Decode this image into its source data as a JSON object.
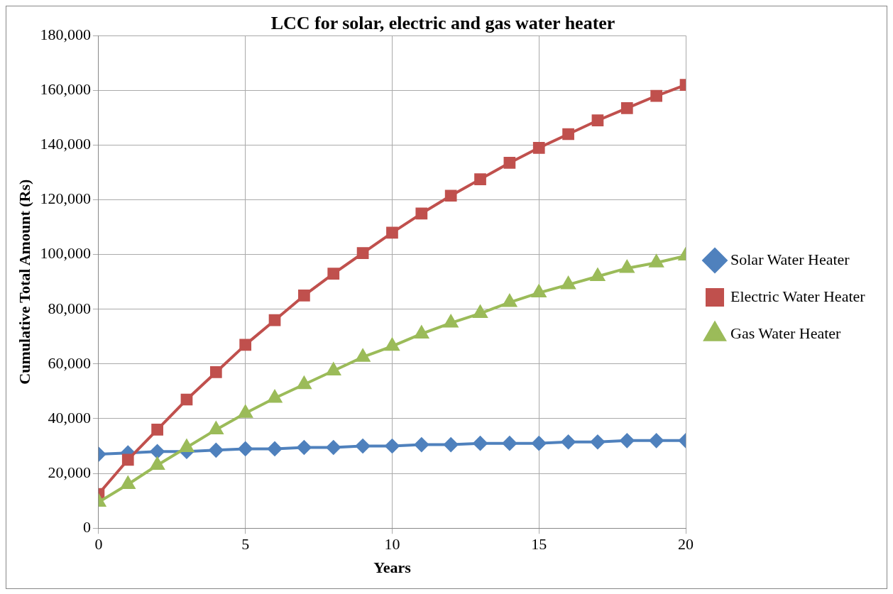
{
  "chart_data": {
    "type": "line",
    "title": "LCC for solar, electric and gas water heater",
    "xlabel": "Years",
    "ylabel": "Cumulative Total Amount (Rs)",
    "x": [
      0,
      1,
      2,
      3,
      4,
      5,
      6,
      7,
      8,
      9,
      10,
      11,
      12,
      13,
      14,
      15,
      16,
      17,
      18,
      19,
      20
    ],
    "series": [
      {
        "name": "Solar Water Heater",
        "color": "#4f81bd",
        "marker": "diamond",
        "values": [
          27000,
          27500,
          28000,
          28000,
          28500,
          29000,
          29000,
          29500,
          29500,
          30000,
          30000,
          30500,
          30500,
          31000,
          31000,
          31000,
          31500,
          31500,
          32000,
          32000,
          32000
        ]
      },
      {
        "name": "Electric Water Heater",
        "color": "#c0504d",
        "marker": "square",
        "values": [
          12500,
          25000,
          36000,
          47000,
          57000,
          67000,
          76000,
          85000,
          93000,
          100500,
          108000,
          115000,
          121500,
          127500,
          133500,
          139000,
          144000,
          149000,
          153500,
          158000,
          162000
        ]
      },
      {
        "name": "Gas Water Heater",
        "color": "#9bbb59",
        "marker": "triangle",
        "values": [
          9500,
          16000,
          23000,
          29500,
          36000,
          42000,
          47500,
          52500,
          57500,
          62500,
          66500,
          71000,
          75000,
          78500,
          82500,
          86000,
          89000,
          92000,
          95000,
          97000,
          99500
        ]
      }
    ],
    "xlim": [
      0,
      20
    ],
    "xticks": [
      0,
      5,
      10,
      15,
      20
    ],
    "ylim": [
      0,
      180000
    ],
    "yticks": [
      0,
      {
        "value": 20000,
        "label": "20,000"
      },
      {
        "value": 40000,
        "label": "40,000"
      },
      {
        "value": 60000,
        "label": "60,000"
      },
      {
        "value": 80000,
        "label": "80,000"
      },
      {
        "value": 100000,
        "label": "100,000"
      },
      {
        "value": 120000,
        "label": "120,000"
      },
      {
        "value": 140000,
        "label": "140,000"
      },
      {
        "value": 160000,
        "label": "160,000"
      },
      {
        "value": 180000,
        "label": "180,000"
      }
    ],
    "grid": true,
    "legend": "right",
    "line_style": "solid"
  }
}
